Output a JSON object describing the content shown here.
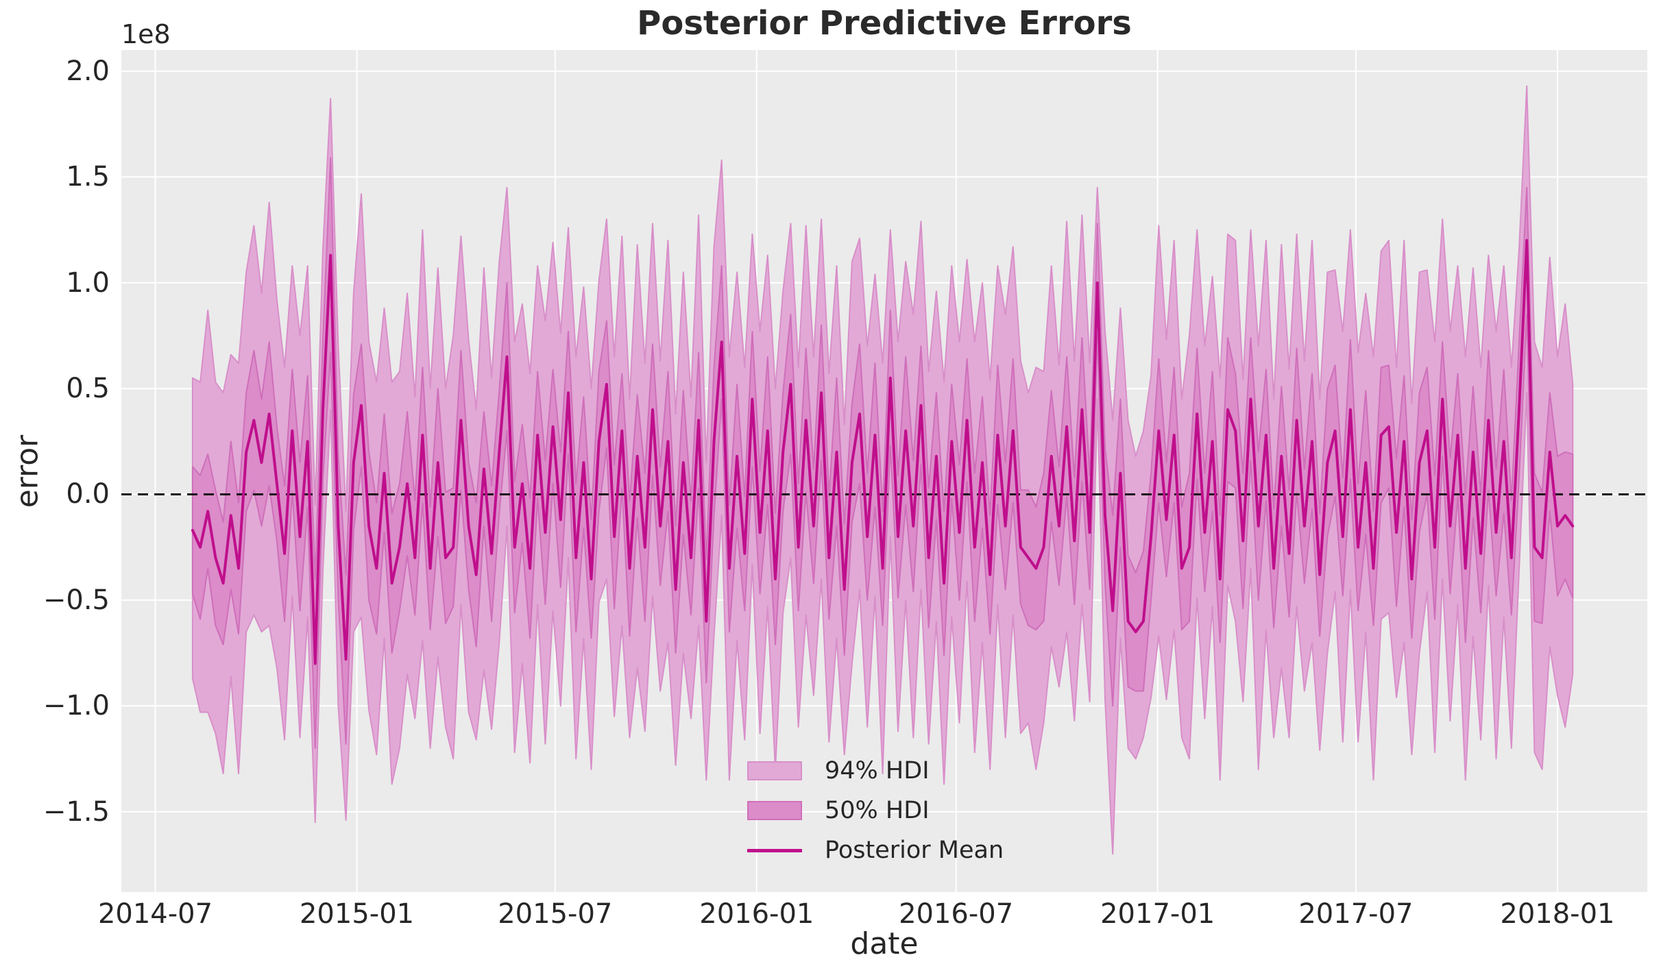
{
  "chart_data": {
    "type": "line",
    "title": "Posterior Predictive Errors",
    "xlabel": "date",
    "ylabel": "error",
    "y_offset_text": "1e8",
    "grid": "on",
    "legend_position": "lower center inside plot",
    "values_unit": "1e6 (axis displays in units of 1e8)",
    "x_unit": "days since 2014-07-01, weekly points",
    "x_start_day": 34,
    "x_step_days": 7,
    "xlim_days": [
      -31,
      1362
    ],
    "ylim_e6": [
      -188,
      210
    ],
    "x_tick_labels": [
      "2014-07",
      "2015-01",
      "2015-07",
      "2016-01",
      "2016-07",
      "2017-01",
      "2017-07",
      "2018-01"
    ],
    "x_tick_days": [
      0,
      184,
      365,
      549,
      731,
      915,
      1096,
      1280
    ],
    "y_tick_labels": [
      "2.0",
      "1.5",
      "1.0",
      "0.5",
      "0.0",
      "−0.5",
      "−1.0",
      "−1.5"
    ],
    "y_tick_values_e6": [
      200,
      150,
      100,
      50,
      0,
      -50,
      -100,
      -150
    ],
    "zero_line_value": 0,
    "legend": [
      {
        "label": "94% HDI",
        "type": "band"
      },
      {
        "label": "50% HDI",
        "type": "band"
      },
      {
        "label": "Posterior Mean",
        "type": "line"
      }
    ],
    "colors": {
      "figure_bg": "#ffffff",
      "plot_bg": "#ebebeb",
      "grid": "#ffffff",
      "hdi94_fill": "#e2a9d6",
      "hdi94_edge": "#d88fc9",
      "hdi50_fill": "#db8cc9",
      "hdi50_edge": "#cf6fba",
      "mean_line": "#bf0f8c",
      "zero_line": "#161616",
      "text": "#262626"
    },
    "series": {
      "mean": [
        -17,
        -25,
        -8,
        -30,
        -42,
        -10,
        -35,
        20,
        35,
        15,
        38,
        5,
        -28,
        30,
        -20,
        25,
        -80,
        40,
        113,
        -15,
        -78,
        15,
        42,
        -15,
        -35,
        10,
        -42,
        -25,
        5,
        -30,
        28,
        -35,
        15,
        -30,
        -25,
        35,
        -15,
        -38,
        12,
        -28,
        20,
        65,
        -25,
        5,
        -35,
        28,
        -18,
        32,
        -12,
        48,
        -30,
        15,
        -40,
        25,
        52,
        -20,
        30,
        -35,
        18,
        -25,
        40,
        -15,
        25,
        -45,
        15,
        -30,
        35,
        -60,
        25,
        72,
        -35,
        18,
        -28,
        45,
        -18,
        30,
        -40,
        20,
        52,
        -25,
        35,
        -15,
        48,
        -30,
        20,
        -45,
        15,
        38,
        -20,
        28,
        -35,
        55,
        -20,
        30,
        -15,
        42,
        -30,
        18,
        -42,
        25,
        -18,
        35,
        -25,
        15,
        -38,
        28,
        -15,
        30,
        -25,
        -30,
        -35,
        -25,
        18,
        -15,
        32,
        -22,
        40,
        -18,
        100,
        -10,
        -55,
        10,
        -60,
        -65,
        -60,
        -20,
        30,
        -12,
        28,
        -35,
        -25,
        38,
        -18,
        25,
        -40,
        40,
        30,
        -22,
        45,
        -15,
        28,
        -35,
        18,
        -28,
        35,
        -15,
        25,
        -38,
        15,
        30,
        -20,
        40,
        -25,
        15,
        -35,
        28,
        32,
        -18,
        25,
        -40,
        15,
        30,
        -25,
        45,
        -15,
        28,
        -35,
        20,
        -28,
        35,
        -18,
        25,
        -30,
        40,
        120,
        -25,
        -30,
        20,
        -15,
        -10,
        -15
      ],
      "hdi50_lower": [
        -47,
        -59,
        -35,
        -62,
        -71,
        -45,
        -66,
        -8,
        2,
        -15,
        4,
        -22,
        -60,
        1,
        -55,
        -6,
        -120,
        7,
        67,
        -49,
        -118,
        -17,
        13,
        -50,
        -66,
        -18,
        -75,
        -55,
        -29,
        -57,
        -4,
        -64,
        -20,
        -61,
        -53,
        2,
        -45,
        -72,
        -15,
        -60,
        -9,
        30,
        -56,
        -23,
        -68,
        -2,
        -52,
        5,
        -44,
        19,
        -65,
        -16,
        -68,
        -8,
        22,
        -54,
        3,
        -67,
        -11,
        -60,
        9,
        -43,
        -8,
        -75,
        -19,
        -57,
        3,
        -89,
        -10,
        45,
        -65,
        -16,
        -55,
        13,
        -47,
        -5,
        -71,
        -8,
        19,
        -55,
        1,
        -42,
        16,
        -59,
        -15,
        -76,
        -13,
        5,
        -50,
        -6,
        -62,
        23,
        -49,
        -5,
        -46,
        14,
        -63,
        -12,
        -76,
        -2,
        -50,
        6,
        -60,
        -16,
        -66,
        -5,
        -45,
        -4,
        -52,
        -62,
        -64,
        -60,
        -13,
        -43,
        -1,
        -52,
        6,
        -45,
        75,
        -42,
        -100,
        -25,
        -91,
        -93,
        -93,
        -50,
        -4,
        -39,
        -4,
        -64,
        -60,
        7,
        -46,
        -8,
        -70,
        6,
        3,
        -54,
        16,
        -50,
        -3,
        -63,
        -15,
        -58,
        1,
        -42,
        -7,
        -67,
        -20,
        -1,
        -48,
        7,
        -55,
        -19,
        -62,
        -4,
        3,
        -53,
        -6,
        -68,
        -18,
        0,
        -59,
        18,
        -47,
        -1,
        -70,
        -11,
        -56,
        2,
        -48,
        -9,
        -57,
        8,
        85,
        -60,
        -61,
        -8,
        -48,
        -40,
        -49
      ],
      "hdi50_upper": [
        13,
        9,
        19,
        2,
        -13,
        25,
        -4,
        48,
        68,
        45,
        72,
        32,
        4,
        59,
        15,
        56,
        -40,
        73,
        159,
        19,
        -38,
        47,
        71,
        20,
        -4,
        38,
        -9,
        5,
        39,
        -3,
        60,
        -6,
        50,
        1,
        3,
        68,
        15,
        -4,
        39,
        4,
        49,
        100,
        6,
        33,
        -2,
        58,
        16,
        59,
        20,
        77,
        5,
        46,
        -12,
        58,
        82,
        14,
        57,
        -3,
        47,
        10,
        71,
        13,
        58,
        -15,
        49,
        -3,
        67,
        -31,
        60,
        108,
        -5,
        52,
        -1,
        77,
        11,
        65,
        -9,
        48,
        85,
        5,
        69,
        12,
        80,
        -1,
        55,
        -14,
        43,
        71,
        10,
        62,
        -8,
        87,
        9,
        65,
        16,
        70,
        3,
        48,
        -8,
        52,
        14,
        64,
        10,
        46,
        -10,
        61,
        15,
        64,
        2,
        2,
        -6,
        10,
        49,
        13,
        65,
        8,
        74,
        9,
        128,
        22,
        -10,
        45,
        -29,
        -37,
        -27,
        10,
        64,
        15,
        60,
        -6,
        10,
        69,
        10,
        58,
        -10,
        74,
        57,
        10,
        74,
        20,
        59,
        -7,
        51,
        2,
        69,
        12,
        57,
        -9,
        50,
        61,
        8,
        73,
        5,
        49,
        -8,
        60,
        61,
        17,
        56,
        -12,
        48,
        60,
        9,
        72,
        17,
        57,
        0,
        51,
        0,
        68,
        12,
        59,
        -3,
        72,
        145,
        10,
        1,
        48,
        18,
        20,
        19
      ],
      "hdi94_lower": [
        -87,
        -103,
        -103,
        -113,
        -132,
        -86,
        -132,
        -65,
        -57,
        -65,
        -62,
        -82,
        -116,
        -48,
        -115,
        -58,
        -155,
        -36,
        40,
        -100,
        -154,
        -65,
        -58,
        -102,
        -123,
        -68,
        -137,
        -120,
        -85,
        -106,
        -69,
        -120,
        -77,
        -110,
        -125,
        -52,
        -103,
        -116,
        -83,
        -111,
        -70,
        -15,
        -122,
        -80,
        -127,
        -52,
        -118,
        -55,
        -100,
        -30,
        -125,
        -68,
        -130,
        -51,
        -40,
        -105,
        -62,
        -115,
        -82,
        -112,
        -48,
        -93,
        -70,
        -128,
        -75,
        -106,
        -62,
        -135,
        -67,
        -10,
        -135,
        -69,
        -116,
        -33,
        -113,
        -53,
        -130,
        -56,
        -30,
        -110,
        -57,
        -95,
        -40,
        -117,
        -68,
        -123,
        -80,
        -45,
        -110,
        -48,
        -132,
        -20,
        -112,
        -50,
        -115,
        -45,
        -118,
        -60,
        -137,
        -58,
        -108,
        -41,
        -122,
        -70,
        -130,
        -52,
        -115,
        -57,
        -113,
        -108,
        -130,
        -108,
        -72,
        -91,
        -65,
        -107,
        -52,
        -98,
        45,
        -97,
        -170,
        -68,
        -120,
        -125,
        -115,
        -96,
        -67,
        -97,
        -64,
        -115,
        -125,
        -49,
        -106,
        -53,
        -135,
        -43,
        -60,
        -98,
        -35,
        -130,
        -64,
        -115,
        -82,
        -115,
        -53,
        -93,
        -70,
        -121,
        -75,
        -46,
        -117,
        -45,
        -117,
        -65,
        -135,
        -59,
        -56,
        -96,
        -70,
        -123,
        -75,
        -46,
        -122,
        -40,
        -107,
        -52,
        -135,
        -67,
        -116,
        -43,
        -125,
        -58,
        -120,
        -36,
        48,
        -122,
        -130,
        -72,
        -95,
        -110,
        -85
      ],
      "hdi94_upper": [
        55,
        53,
        87,
        53,
        48,
        66,
        62,
        105,
        127,
        95,
        138,
        92,
        60,
        108,
        75,
        108,
        -5,
        116,
        187,
        70,
        -8,
        95,
        142,
        72,
        53,
        88,
        53,
        58,
        95,
        46,
        125,
        50,
        107,
        50,
        75,
        122,
        73,
        40,
        107,
        55,
        110,
        145,
        72,
        90,
        57,
        108,
        82,
        119,
        76,
        126,
        65,
        98,
        50,
        101,
        130,
        65,
        122,
        45,
        118,
        62,
        128,
        63,
        120,
        38,
        105,
        46,
        132,
        15,
        117,
        158,
        65,
        105,
        60,
        123,
        77,
        113,
        50,
        96,
        128,
        60,
        127,
        65,
        130,
        57,
        108,
        33,
        110,
        121,
        70,
        104,
        62,
        125,
        72,
        110,
        85,
        129,
        58,
        96,
        53,
        108,
        72,
        111,
        72,
        100,
        54,
        108,
        85,
        117,
        63,
        48,
        60,
        58,
        108,
        61,
        129,
        63,
        132,
        62,
        145,
        77,
        35,
        88,
        35,
        18,
        30,
        56,
        127,
        73,
        120,
        45,
        75,
        125,
        70,
        103,
        55,
        123,
        120,
        54,
        125,
        70,
        120,
        45,
        118,
        59,
        123,
        63,
        120,
        45,
        105,
        106,
        77,
        125,
        67,
        95,
        65,
        115,
        120,
        60,
        120,
        43,
        105,
        106,
        72,
        130,
        77,
        108,
        65,
        107,
        60,
        113,
        77,
        108,
        60,
        116,
        193,
        72,
        60,
        112,
        65,
        90,
        52
      ]
    }
  }
}
